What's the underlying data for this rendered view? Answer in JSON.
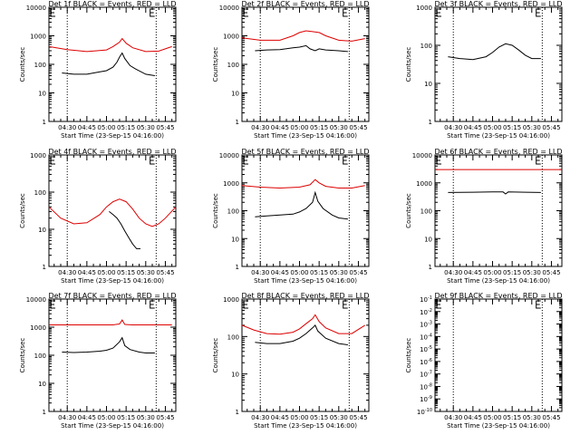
{
  "figure": {
    "xlabel": "Start Time (23-Sep-15 04:16:00)",
    "ylabel": "Counts/sec",
    "x_tick_labels": [
      "04:30",
      "04:45",
      "05:00",
      "05:15",
      "05:30",
      "05:45"
    ],
    "colors": {
      "events": "#000000",
      "lld": "#dd0000"
    }
  },
  "chart_data": [
    {
      "type": "line",
      "title": "Det 1f BLACK = Events, RED = LLD",
      "ylabel": "Counts/sec",
      "xlabel": "Start Time (23-Sep-15 04:16:00)",
      "xlim": [
        "04:16",
        "05:53"
      ],
      "ylim": [
        1,
        10000
      ],
      "yscale": "log",
      "y_tick_labels": [
        "1",
        "10",
        "100",
        "1000",
        "10000"
      ],
      "vlines": [
        "04:30",
        "05:38"
      ],
      "markers": [
        "04:16",
        "05:32"
      ],
      "series": [
        {
          "name": "LLD",
          "color": "#dd0000",
          "x": [
            "04:16",
            "04:30",
            "04:45",
            "05:00",
            "05:05",
            "05:10",
            "05:12",
            "05:15",
            "05:20",
            "05:30",
            "05:40",
            "05:50"
          ],
          "y": [
            420,
            330,
            280,
            320,
            420,
            600,
            800,
            550,
            380,
            280,
            290,
            420
          ]
        },
        {
          "name": "Events",
          "color": "#000000",
          "x": [
            "04:26",
            "04:35",
            "04:45",
            "04:55",
            "05:00",
            "05:05",
            "05:08",
            "05:10",
            "05:12",
            "05:14",
            "05:18",
            "05:22",
            "05:30",
            "05:37"
          ],
          "y": [
            50,
            45,
            45,
            55,
            60,
            80,
            120,
            180,
            250,
            160,
            90,
            70,
            45,
            40
          ]
        }
      ]
    },
    {
      "type": "line",
      "title": "Det 2f BLACK = Events, RED = LLD",
      "ylabel": "Counts/sec",
      "xlabel": "Start Time (23-Sep-15 04:16:00)",
      "xlim": [
        "04:16",
        "05:53"
      ],
      "ylim": [
        1,
        10000
      ],
      "yscale": "log",
      "y_tick_labels": [
        "1",
        "10",
        "100",
        "1000",
        "10000"
      ],
      "vlines": [
        "04:30",
        "05:38"
      ],
      "markers": [
        "04:16",
        "05:32"
      ],
      "series": [
        {
          "name": "LLD",
          "color": "#dd0000",
          "x": [
            "04:16",
            "04:30",
            "04:45",
            "04:55",
            "05:00",
            "05:05",
            "05:10",
            "05:15",
            "05:20",
            "05:30",
            "05:40",
            "05:50"
          ],
          "y": [
            850,
            700,
            700,
            1000,
            1300,
            1500,
            1400,
            1300,
            1000,
            700,
            650,
            800
          ]
        },
        {
          "name": "Events",
          "color": "#000000",
          "x": [
            "04:26",
            "04:35",
            "04:45",
            "04:55",
            "05:00",
            "05:05",
            "05:08",
            "05:12",
            "05:15",
            "05:20",
            "05:30",
            "05:37"
          ],
          "y": [
            300,
            320,
            330,
            380,
            400,
            450,
            350,
            300,
            350,
            320,
            300,
            280
          ]
        }
      ]
    },
    {
      "type": "line",
      "title": "Det 3f BLACK = Events, RED = LLD",
      "ylabel": "Counts/sec",
      "xlabel": "",
      "xlim": [
        "04:16",
        "05:53"
      ],
      "ylim": [
        1,
        1000
      ],
      "yscale": "log",
      "y_tick_labels": [
        "1",
        "10",
        "100",
        "1000"
      ],
      "vlines": [
        "04:30",
        "05:38"
      ],
      "markers": [
        "04:16",
        "05:32"
      ],
      "series": [
        {
          "name": "Events",
          "color": "#000000",
          "x": [
            "04:26",
            "04:35",
            "04:45",
            "04:55",
            "05:00",
            "05:05",
            "05:10",
            "05:15",
            "05:20",
            "05:25",
            "05:30",
            "05:37"
          ],
          "y": [
            50,
            45,
            42,
            50,
            65,
            90,
            110,
            100,
            75,
            55,
            45,
            45
          ]
        }
      ]
    },
    {
      "type": "line",
      "title": "Det 4f BLACK = Events, RED = LLD",
      "ylabel": "Counts/sec",
      "xlabel": "",
      "xlim": [
        "04:16",
        "05:53"
      ],
      "ylim": [
        1,
        1000
      ],
      "yscale": "log",
      "y_tick_labels": [
        "1",
        "10",
        "100",
        "1000"
      ],
      "vlines": [
        "04:30",
        "05:38"
      ],
      "markers": [
        "04:16",
        "05:32"
      ],
      "series": [
        {
          "name": "LLD",
          "color": "#dd0000",
          "x": [
            "04:16",
            "04:25",
            "04:35",
            "04:45",
            "04:55",
            "05:00",
            "05:05",
            "05:10",
            "05:15",
            "05:20",
            "05:25",
            "05:30",
            "05:35",
            "05:40",
            "05:45",
            "05:53"
          ],
          "y": [
            40,
            20,
            14,
            15,
            25,
            40,
            55,
            65,
            55,
            35,
            20,
            14,
            12,
            14,
            20,
            40
          ]
        },
        {
          "name": "Events",
          "color": "#000000",
          "x": [
            "05:02",
            "05:05",
            "05:08",
            "05:11",
            "05:14",
            "05:17",
            "05:20",
            "05:23",
            "05:26"
          ],
          "y": [
            30,
            25,
            20,
            14,
            9,
            6,
            4,
            3,
            3
          ]
        }
      ]
    },
    {
      "type": "line",
      "title": "Det 5f BLACK = Events, RED = LLD",
      "ylabel": "Counts/sec",
      "xlabel": "",
      "xlim": [
        "04:16",
        "05:53"
      ],
      "ylim": [
        1,
        10000
      ],
      "yscale": "log",
      "y_tick_labels": [
        "1",
        "10",
        "100",
        "1000",
        "10000"
      ],
      "vlines": [
        "04:30",
        "05:38"
      ],
      "markers": [
        "04:16",
        "05:32"
      ],
      "series": [
        {
          "name": "LLD",
          "color": "#dd0000",
          "x": [
            "04:16",
            "04:30",
            "04:45",
            "05:00",
            "05:08",
            "05:12",
            "05:15",
            "05:20",
            "05:30",
            "05:40",
            "05:50"
          ],
          "y": [
            800,
            700,
            650,
            700,
            850,
            1300,
            1000,
            750,
            650,
            650,
            800
          ]
        },
        {
          "name": "Events",
          "color": "#000000",
          "x": [
            "04:26",
            "04:35",
            "04:45",
            "04:55",
            "05:00",
            "05:05",
            "05:10",
            "05:12",
            "05:14",
            "05:18",
            "05:25",
            "05:30",
            "05:37"
          ],
          "y": [
            60,
            65,
            70,
            75,
            90,
            120,
            200,
            450,
            220,
            120,
            70,
            55,
            50
          ]
        }
      ]
    },
    {
      "type": "line",
      "title": "Det 6f BLACK = Events, RED = LLD",
      "ylabel": "Counts/sec",
      "xlabel": "",
      "xlim": [
        "04:16",
        "05:53"
      ],
      "ylim": [
        1,
        10000
      ],
      "yscale": "log",
      "y_tick_labels": [
        "1",
        "10",
        "100",
        "1000",
        "10000"
      ],
      "vlines": [
        "04:30",
        "05:38"
      ],
      "markers": [
        "04:16",
        "05:32"
      ],
      "series": [
        {
          "name": "LLD",
          "color": "#dd0000",
          "x": [
            "04:16",
            "05:53"
          ],
          "y": [
            3000,
            3000
          ]
        },
        {
          "name": "Events",
          "color": "#000000",
          "x": [
            "04:26",
            "04:45",
            "05:00",
            "05:08",
            "05:10",
            "05:12",
            "05:25",
            "05:37"
          ],
          "y": [
            450,
            460,
            470,
            470,
            400,
            470,
            460,
            450
          ]
        }
      ]
    },
    {
      "type": "line",
      "title": "Det 7f BLACK = Events, RED = LLD",
      "ylabel": "Counts/sec",
      "xlabel": "Start Time (23-Sep-15 04:16:00)",
      "xlim": [
        "04:16",
        "05:53"
      ],
      "ylim": [
        1,
        10000
      ],
      "yscale": "log",
      "y_tick_labels": [
        "1",
        "10",
        "100",
        "1000",
        "10000"
      ],
      "vlines": [
        "04:30",
        "05:38"
      ],
      "markers": [
        "04:16",
        "05:32"
      ],
      "series": [
        {
          "name": "LLD",
          "color": "#dd0000",
          "x": [
            "04:16",
            "04:45",
            "05:05",
            "05:10",
            "05:12",
            "05:14",
            "05:20",
            "05:40",
            "05:50"
          ],
          "y": [
            1200,
            1200,
            1200,
            1300,
            1800,
            1250,
            1200,
            1200,
            1200
          ]
        },
        {
          "name": "Events",
          "color": "#000000",
          "x": [
            "04:26",
            "04:35",
            "04:45",
            "04:55",
            "05:00",
            "05:05",
            "05:10",
            "05:12",
            "05:14",
            "05:18",
            "05:25",
            "05:30",
            "05:37"
          ],
          "y": [
            130,
            125,
            130,
            140,
            150,
            180,
            300,
            420,
            220,
            160,
            130,
            120,
            120
          ]
        }
      ]
    },
    {
      "type": "line",
      "title": "Det 8f BLACK = Events, RED = LLD",
      "ylabel": "Counts/sec",
      "xlabel": "Start Time (23-Sep-15 04:16:00)",
      "xlim": [
        "04:16",
        "05:53"
      ],
      "ylim": [
        1,
        1000
      ],
      "yscale": "log",
      "y_tick_labels": [
        "1",
        "10",
        "100",
        "1000"
      ],
      "vlines": [
        "04:30",
        "05:38"
      ],
      "markers": [
        "04:16",
        "05:32"
      ],
      "series": [
        {
          "name": "LLD",
          "color": "#dd0000",
          "x": [
            "04:16",
            "04:25",
            "04:35",
            "04:45",
            "04:55",
            "05:00",
            "05:05",
            "05:10",
            "05:12",
            "05:15",
            "05:20",
            "05:30",
            "05:40",
            "05:50"
          ],
          "y": [
            200,
            150,
            120,
            115,
            130,
            160,
            220,
            300,
            380,
            250,
            170,
            120,
            120,
            200
          ]
        },
        {
          "name": "Events",
          "color": "#000000",
          "x": [
            "04:26",
            "04:35",
            "04:45",
            "04:55",
            "05:00",
            "05:05",
            "05:10",
            "05:12",
            "05:14",
            "05:20",
            "05:30",
            "05:37"
          ],
          "y": [
            70,
            65,
            65,
            75,
            90,
            120,
            170,
            200,
            140,
            90,
            65,
            60
          ]
        }
      ]
    },
    {
      "type": "line",
      "title": "Det 9f BLACK = Events, RED = LLD",
      "ylabel": "Counts/sec",
      "xlabel": "Start Time (23-Sep-15 04:16:00)",
      "xlim": [
        "04:16",
        "05:53"
      ],
      "ylim": [
        1e-10,
        0.1
      ],
      "yscale": "log",
      "y_tick_labels": [
        "10^-10",
        "10^-9",
        "10^-8",
        "10^-7",
        "10^-6",
        "10^-5",
        "10^-4",
        "10^-3",
        "10^-2",
        "10^-1"
      ],
      "vlines": [
        "04:30",
        "05:38"
      ],
      "markers": [
        "04:16",
        "05:32"
      ],
      "series": []
    }
  ]
}
